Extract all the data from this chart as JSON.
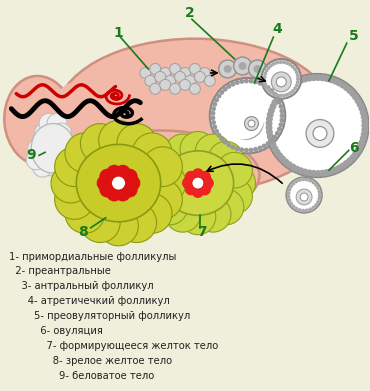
{
  "background_color": "#f0efdc",
  "ovary_color": "#f2b8a8",
  "ovary_border": "#d09080",
  "green": "#1a7a1a",
  "legend_lines": [
    "1- примордиальные фолликулы",
    "  2- преантральные",
    "    3- антральный фолликул",
    "      4- атретичечкий фолликул",
    "        5- преовуляторный фолликул",
    "          6- овуляция",
    "            7- формирующееся желток тело",
    "              8- зрелое желтое тело",
    "                9- беловатое тело"
  ],
  "legend_color": "#222222",
  "legend_fontsize": 7.2
}
